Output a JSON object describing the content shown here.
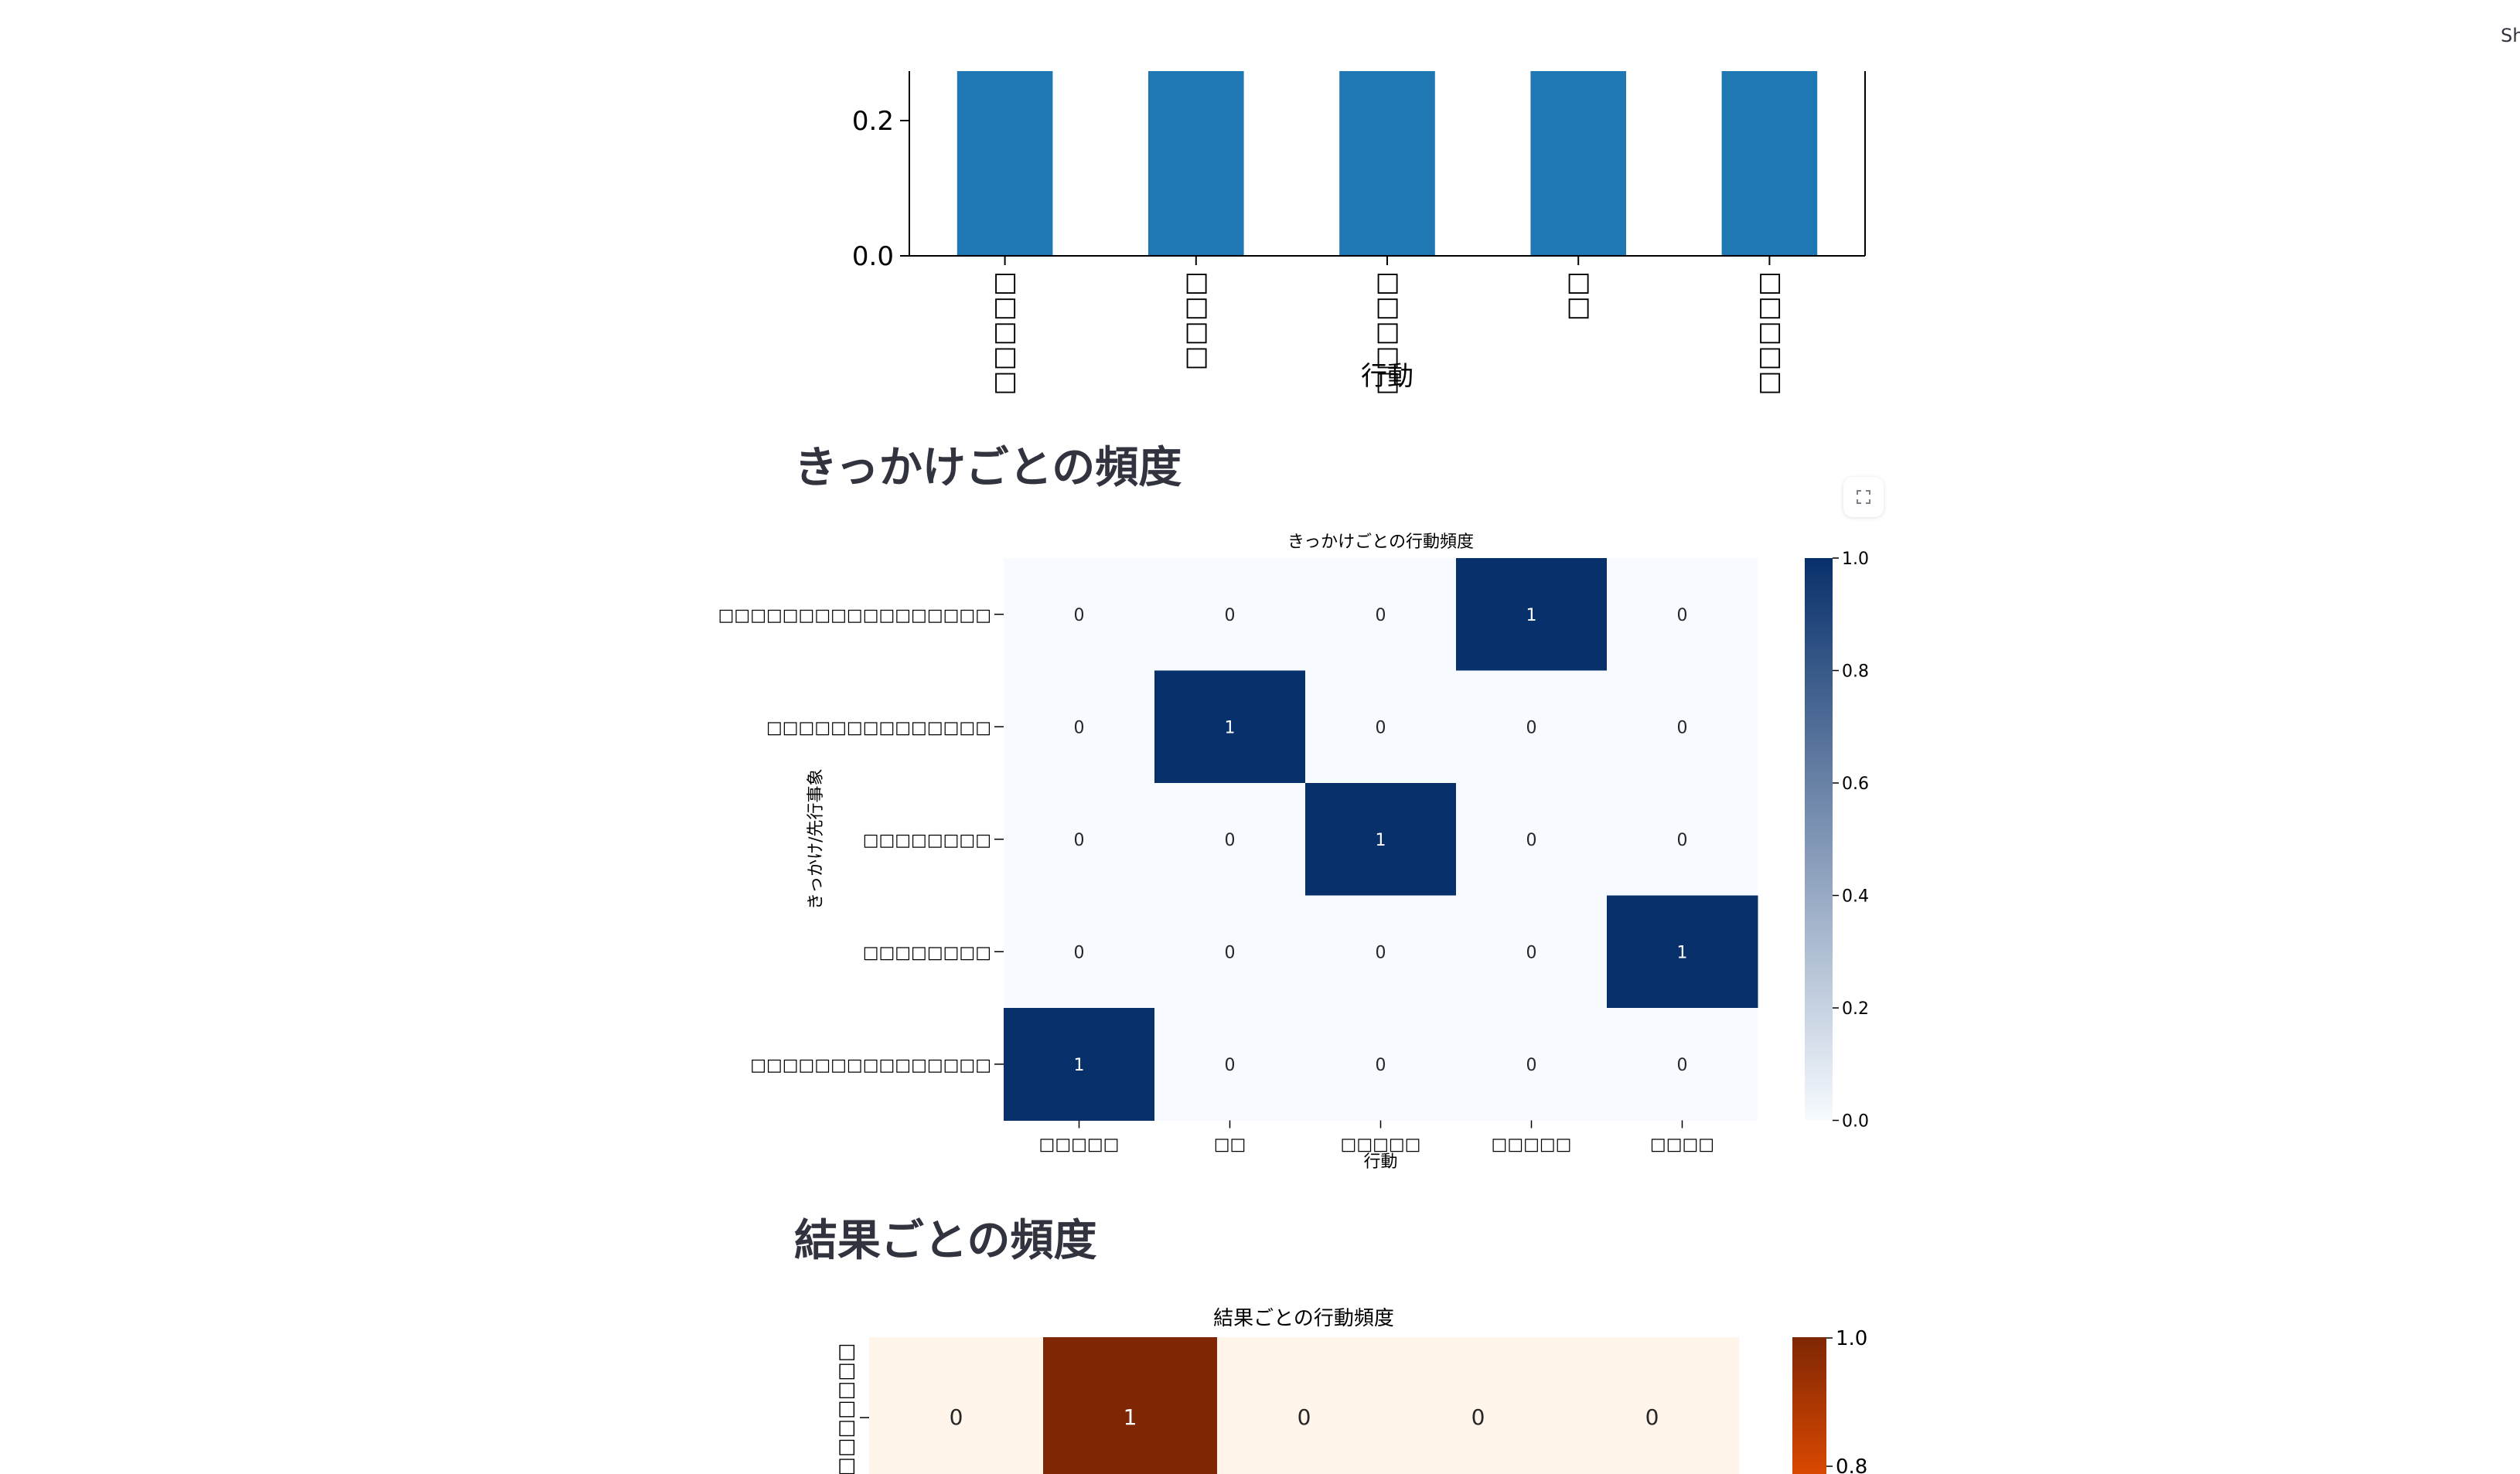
{
  "top_right_text": "Sh",
  "sections": [
    {
      "title": "きっかけごとの頻度"
    },
    {
      "title": "結果ごとの頻度"
    }
  ],
  "expand_button": {
    "icon": "fullscreen-expand-icon"
  },
  "chart_data": [
    {
      "type": "bar",
      "title": "",
      "xlabel": "行動",
      "ylabel": "",
      "categories": [
        "□□□□□",
        "□□□□",
        "□□□□□",
        "□□",
        "□□□□□"
      ],
      "values": [
        1,
        1,
        1,
        1,
        1
      ],
      "yticks": [
        "0.0",
        "0.2"
      ],
      "visible_ylim": [
        0,
        0.27
      ],
      "color": "#1f77b4",
      "note_visible": "cropped at top of screenshot"
    },
    {
      "type": "heatmap",
      "title": "きっかけごとの行動頻度",
      "xlabel": "行動",
      "ylabel": "きっかけ/先行事象",
      "x_categories": [
        "□□□□□",
        "□□",
        "□□□□□",
        "□□□□□",
        "□□□□"
      ],
      "y_categories": [
        "□□□□□□□□□□□□□□□□□",
        "□□□□□□□□□□□□□□",
        "□□□□□□□□",
        "□□□□□□□□",
        "□□□□□□□□□□□□□□□"
      ],
      "values": [
        [
          0,
          0,
          0,
          1,
          0
        ],
        [
          0,
          1,
          0,
          0,
          0
        ],
        [
          0,
          0,
          1,
          0,
          0
        ],
        [
          0,
          0,
          0,
          0,
          1
        ],
        [
          1,
          0,
          0,
          0,
          0
        ]
      ],
      "colormap": "Blues",
      "vmin": 0,
      "vmax": 1,
      "colorbar_ticks": [
        "0.0",
        "0.2",
        "0.4",
        "0.6",
        "0.8",
        "1.0"
      ],
      "low_color": "#f7fbff",
      "high_color": "#08306b"
    },
    {
      "type": "heatmap",
      "title": "結果ごとの行動頻度",
      "ylabel": "",
      "y_categories": [
        "□□□□□□□□"
      ],
      "values": [
        [
          0,
          1,
          0,
          0,
          0
        ]
      ],
      "colormap": "Oranges",
      "vmin": 0,
      "vmax": 1,
      "colorbar_ticks": [
        "0.8",
        "1.0"
      ],
      "low_color": "#fff5eb",
      "high_color": "#7f2704"
    }
  ]
}
